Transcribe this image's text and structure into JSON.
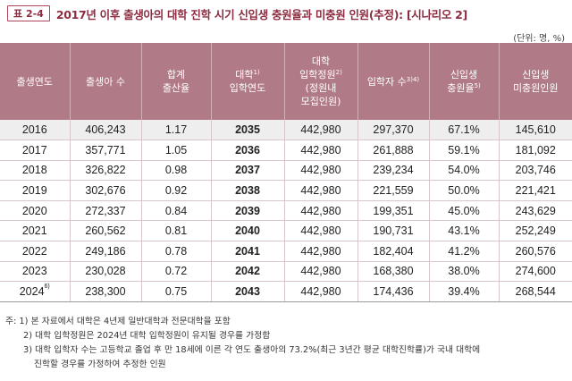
{
  "title": {
    "table_no": "표 2-4",
    "text": "2017년 이후 출생아의 대학 진학 시기 신입생 충원율과 미충원 인원(추정): [시나리오 2]"
  },
  "unit": "(단위: 명, %)",
  "headers": [
    {
      "lines": [
        "출생연도"
      ]
    },
    {
      "lines": [
        "출생아 수"
      ]
    },
    {
      "lines": [
        "합계",
        "출산율"
      ]
    },
    {
      "lines": [
        "대학",
        "입학연도"
      ],
      "sup_line": 0,
      "sup": "1)"
    },
    {
      "lines": [
        "대학",
        "입학정원",
        "(정원내",
        "모집인원)"
      ],
      "sup_line": 1,
      "sup": "2)"
    },
    {
      "lines": [
        "입학자 수"
      ],
      "sup_line": 0,
      "sup": "3)4)"
    },
    {
      "lines": [
        "신입생",
        "충원율"
      ],
      "sup_line": 1,
      "sup": "5)"
    },
    {
      "lines": [
        "신입생",
        "미충원인원"
      ]
    }
  ],
  "rows": [
    {
      "year": "2016",
      "year_sup": "",
      "births": "406,243",
      "tfr": "1.17",
      "entry_year": "2035",
      "quota": "442,980",
      "entrants": "297,370",
      "fill_rate": "67.1%",
      "unfilled": "145,610",
      "highlight": true
    },
    {
      "year": "2017",
      "year_sup": "",
      "births": "357,771",
      "tfr": "1.05",
      "entry_year": "2036",
      "quota": "442,980",
      "entrants": "261,888",
      "fill_rate": "59.1%",
      "unfilled": "181,092",
      "highlight": false
    },
    {
      "year": "2018",
      "year_sup": "",
      "births": "326,822",
      "tfr": "0.98",
      "entry_year": "2037",
      "quota": "442,980",
      "entrants": "239,234",
      "fill_rate": "54.0%",
      "unfilled": "203,746",
      "highlight": false
    },
    {
      "year": "2019",
      "year_sup": "",
      "births": "302,676",
      "tfr": "0.92",
      "entry_year": "2038",
      "quota": "442,980",
      "entrants": "221,559",
      "fill_rate": "50.0%",
      "unfilled": "221,421",
      "highlight": false
    },
    {
      "year": "2020",
      "year_sup": "",
      "births": "272,337",
      "tfr": "0.84",
      "entry_year": "2039",
      "quota": "442,980",
      "entrants": "199,351",
      "fill_rate": "45.0%",
      "unfilled": "243,629",
      "highlight": false
    },
    {
      "year": "2021",
      "year_sup": "",
      "births": "260,562",
      "tfr": "0.81",
      "entry_year": "2040",
      "quota": "442,980",
      "entrants": "190,731",
      "fill_rate": "43.1%",
      "unfilled": "252,249",
      "highlight": false
    },
    {
      "year": "2022",
      "year_sup": "",
      "births": "249,186",
      "tfr": "0.78",
      "entry_year": "2041",
      "quota": "442,980",
      "entrants": "182,404",
      "fill_rate": "41.2%",
      "unfilled": "260,576",
      "highlight": false
    },
    {
      "year": "2023",
      "year_sup": "",
      "births": "230,028",
      "tfr": "0.72",
      "entry_year": "2042",
      "quota": "442,980",
      "entrants": "168,380",
      "fill_rate": "38.0%",
      "unfilled": "274,600",
      "highlight": false
    },
    {
      "year": "2024",
      "year_sup": "6)",
      "births": "238,300",
      "tfr": "0.75",
      "entry_year": "2043",
      "quota": "442,980",
      "entrants": "174,436",
      "fill_rate": "39.4%",
      "unfilled": "268,544",
      "highlight": false
    }
  ],
  "notes": [
    "주: 1) 본 자료에서 대학은 4년제 일반대학과 전문대학을 포함",
    "2) 대학 입학정원은 2024년 대학 입학정원이 유지될 경우를 가정함",
    "3) 대학 입학자 수는 고등학교 졸업 후 만 18세에 이른 각 연도 출생아의 73.2%(최근 3년간 평균 대학진학률)가 국내 대학에",
    "진학할 경우를 가정하여 추정한 인원"
  ],
  "colors": {
    "header_bg": "#b07a86",
    "title_accent": "#8c2c40",
    "highlight_row": "#eeeeee"
  }
}
